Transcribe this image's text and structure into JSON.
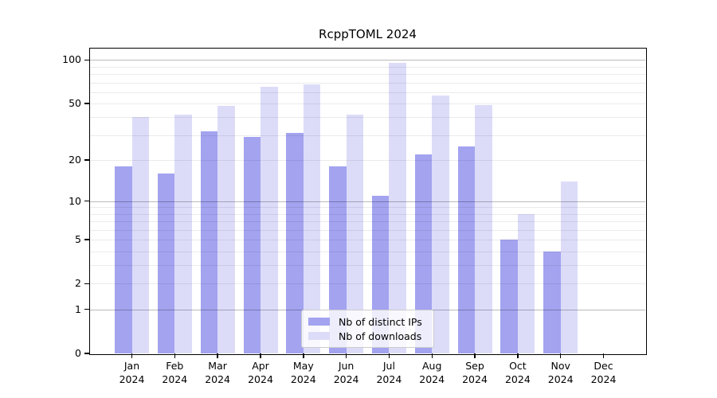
{
  "title": "RcppTOML 2024",
  "chart_data": {
    "type": "bar",
    "title": "RcppTOML 2024",
    "categories": [
      "Jan",
      "Feb",
      "Mar",
      "Apr",
      "May",
      "Jun",
      "Jul",
      "Aug",
      "Sep",
      "Oct",
      "Nov",
      "Dec"
    ],
    "year_label": "2024",
    "series": [
      {
        "name": "Nb of distinct IPs",
        "color": "#a3a3f0",
        "values": [
          18,
          16,
          32,
          29,
          31,
          18,
          11,
          22,
          25,
          5,
          4,
          0
        ]
      },
      {
        "name": "Nb of downloads",
        "color": "#dcdcf9",
        "values": [
          40,
          42,
          48,
          65,
          68,
          42,
          96,
          57,
          49,
          8,
          14,
          0
        ]
      }
    ],
    "yscale": "log1p",
    "ylim": [
      0,
      120
    ],
    "y_ticks": [
      0,
      1,
      2,
      5,
      10,
      20,
      50,
      100
    ],
    "grid_minor": [
      2,
      3,
      4,
      5,
      6,
      7,
      8,
      9,
      20,
      30,
      40,
      50,
      60,
      70,
      80,
      90
    ],
    "grid_major": [
      1,
      10,
      100
    ],
    "grid": true,
    "legend_position": "lower center",
    "axis_color": "#000000",
    "background_color": "#ffffff"
  },
  "legend": {
    "entries": [
      "Nb of distinct IPs",
      "Nb of downloads"
    ]
  }
}
